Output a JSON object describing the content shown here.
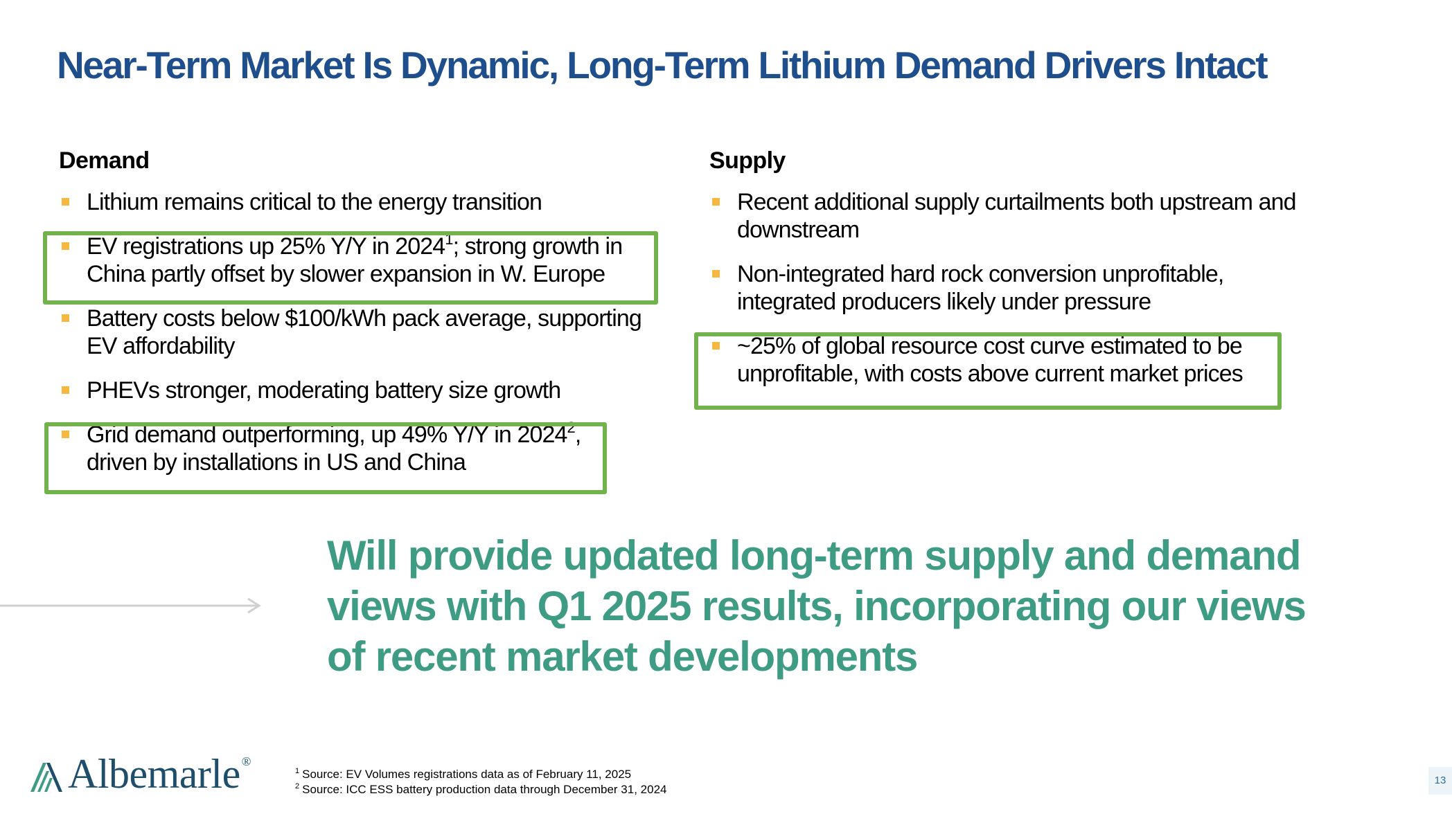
{
  "title": "Near-Term Market Is Dynamic, Long-Term Lithium Demand Drivers Intact",
  "demand": {
    "heading": "Demand",
    "items": [
      {
        "text": "Lithium remains critical to the energy transition",
        "sup": "",
        "after": "",
        "highlight": false
      },
      {
        "text": "EV registrations up 25% Y/Y in 2024",
        "sup": "1",
        "after": "; strong growth in China partly offset by slower expansion in W. Europe",
        "highlight": true
      },
      {
        "text": "Battery costs below $100/kWh pack average, supporting EV affordability",
        "sup": "",
        "after": "",
        "highlight": false
      },
      {
        "text": "PHEVs stronger, moderating battery size growth",
        "sup": "",
        "after": "",
        "highlight": false
      },
      {
        "text": "Grid demand outperforming, up 49% Y/Y in 2024",
        "sup": "2",
        "after": ", driven by installations in US and China",
        "highlight": true
      }
    ]
  },
  "supply": {
    "heading": "Supply",
    "items": [
      {
        "text": "Recent additional supply curtailments both upstream and downstream",
        "highlight": false
      },
      {
        "text": "Non-integrated hard rock conversion unprofitable, integrated producers likely under pressure",
        "highlight": false
      },
      {
        "text": "~25% of global resource cost curve estimated to be unprofitable, with costs above current market prices",
        "highlight": true
      }
    ]
  },
  "callout": "Will provide updated long-term supply and demand views with Q1 2025 results, incorporating our views of recent market developments",
  "logo": {
    "name": "Albemarle",
    "reg": "®"
  },
  "footnotes": [
    {
      "num": "1",
      "text": "Source: EV Volumes registrations data as of February 11, 2025"
    },
    {
      "num": "2",
      "text": "Source: ICC ESS battery production data through December 31, 2024"
    }
  ],
  "page_number": "13",
  "colors": {
    "title": "#1F4E8C",
    "bullet_marker": "#F5B841",
    "highlight_border": "#71B24D",
    "callout": "#3F9C84",
    "logo": "#1F4E6B",
    "arrow": "#CFCFCF"
  },
  "icons": {
    "bullet": "square-bullet-icon",
    "arrow": "right-arrow-icon",
    "logo_mark": "albemarle-logo-mark-icon"
  }
}
